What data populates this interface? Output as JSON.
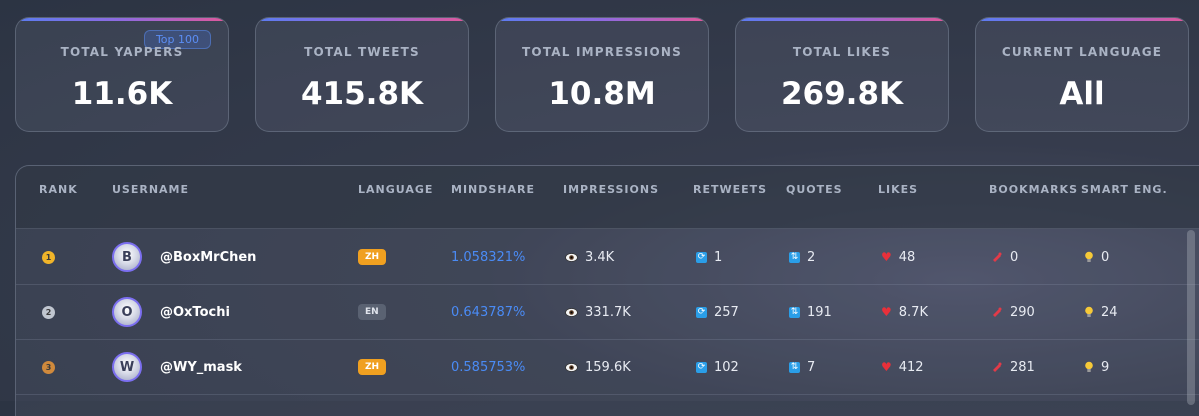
{
  "stats": {
    "badge": "Top 100",
    "cards": [
      {
        "label": "TOTAL YAPPERS",
        "value": "11.6K"
      },
      {
        "label": "TOTAL TWEETS",
        "value": "415.8K"
      },
      {
        "label": "TOTAL IMPRESSIONS",
        "value": "10.8M"
      },
      {
        "label": "TOTAL LIKES",
        "value": "269.8K"
      },
      {
        "label": "CURRENT LANGUAGE",
        "value": "All"
      }
    ]
  },
  "table": {
    "columns": [
      "RANK",
      "USERNAME",
      "LANGUAGE",
      "MINDSHARE",
      "IMPRESSIONS",
      "RETWEETS",
      "QUOTES",
      "LIKES",
      "BOOKMARKS",
      "SMART ENG."
    ],
    "rows": [
      {
        "rank": "1",
        "medal_color": "#f0b429",
        "avatar_initial": "B",
        "username": "@BoxMrChen",
        "language": "ZH",
        "mindshare": "1.058321%",
        "impressions": "3.4K",
        "retweets": "1",
        "quotes": "2",
        "likes": "48",
        "bookmarks": "0",
        "smart_eng": "0"
      },
      {
        "rank": "2",
        "medal_color": "#c0c6d0",
        "avatar_initial": "O",
        "username": "@OxTochi",
        "language": "EN",
        "mindshare": "0.643787%",
        "impressions": "331.7K",
        "retweets": "257",
        "quotes": "191",
        "likes": "8.7K",
        "bookmarks": "290",
        "smart_eng": "24"
      },
      {
        "rank": "3",
        "medal_color": "#d08a3c",
        "avatar_initial": "W",
        "username": "@WY_mask",
        "language": "ZH",
        "mindshare": "0.585753%",
        "impressions": "159.6K",
        "retweets": "102",
        "quotes": "7",
        "likes": "412",
        "bookmarks": "281",
        "smart_eng": "9"
      }
    ]
  },
  "icons": {
    "impressions": "eye-icon",
    "retweets": "retweet-icon",
    "quotes": "quote-icon",
    "likes": "heart-icon",
    "bookmarks": "bookmark-icon",
    "smart_eng": "lightbulb-icon"
  }
}
